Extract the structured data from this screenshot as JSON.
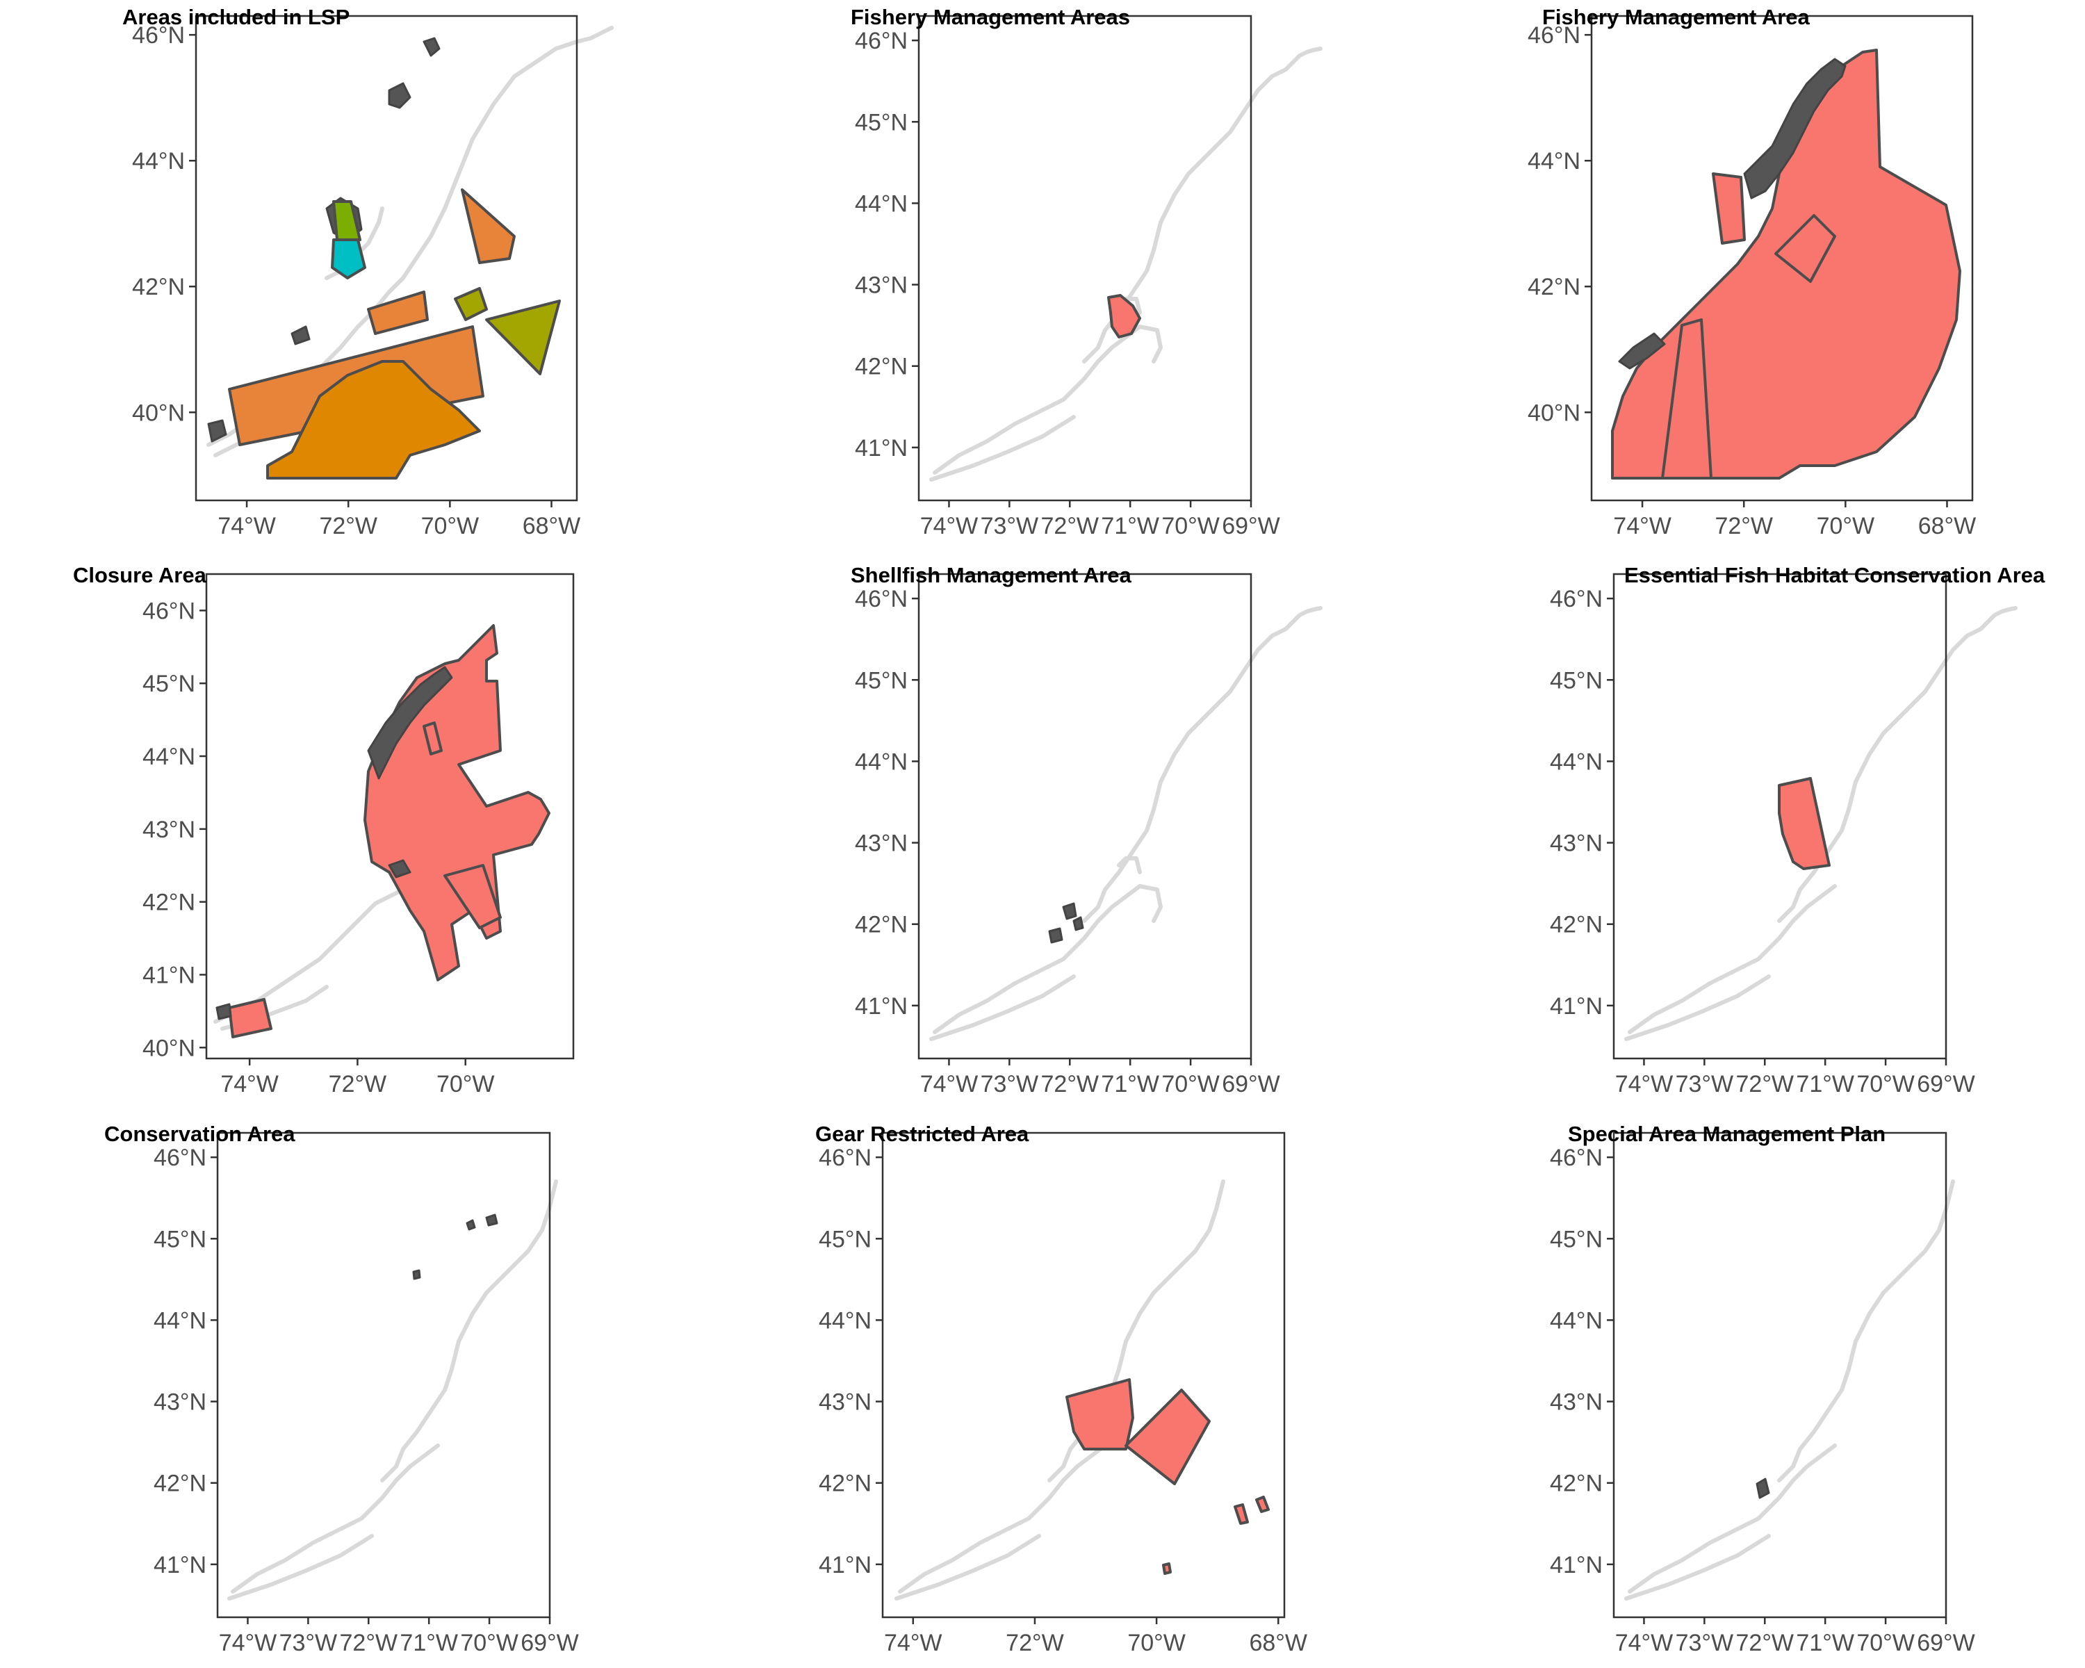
{
  "colors": {
    "coast": "#d9d9d9",
    "outline": "#4d4d4d",
    "default_fill": "#f8766d",
    "coast_dark": "#555555",
    "orange": "#e8833a",
    "dark_orange": "#e08700",
    "olive": "#a3a500",
    "green": "#7cae00",
    "cyan": "#00bfc4"
  },
  "panels": [
    {
      "title": "Areas included in LSP",
      "lon_range": [
        -75.0,
        -67.5
      ],
      "lat_range": [
        38.6,
        46.3
      ],
      "x_ticks": [
        "74°W",
        "72°W",
        "70°W",
        "68°W"
      ],
      "y_ticks": [
        "40°N",
        "42°N",
        "44°N",
        "46°N"
      ]
    },
    {
      "title": "Fishery Management Areas",
      "lon_range": [
        -74.5,
        -69.0
      ],
      "lat_range": [
        40.35,
        46.3
      ],
      "x_ticks": [
        "74°W",
        "73°W",
        "72°W",
        "71°W",
        "70°W",
        "69°W"
      ],
      "y_ticks": [
        "41°N",
        "42°N",
        "43°N",
        "44°N",
        "45°N",
        "46°N"
      ]
    },
    {
      "title": "Fishery Management Area",
      "lon_range": [
        -75.0,
        -67.5
      ],
      "lat_range": [
        38.6,
        46.3
      ],
      "x_ticks": [
        "74°W",
        "72°W",
        "70°W",
        "68°W"
      ],
      "y_ticks": [
        "40°N",
        "42°N",
        "44°N",
        "46°N"
      ]
    },
    {
      "title": "Closure Area",
      "lon_range": [
        -74.8,
        -68.0
      ],
      "lat_range": [
        39.85,
        46.5
      ],
      "x_ticks": [
        "74°W",
        "72°W",
        "70°W"
      ],
      "y_ticks": [
        "40°N",
        "41°N",
        "42°N",
        "43°N",
        "44°N",
        "45°N",
        "46°N"
      ]
    },
    {
      "title": "Shellfish Management Area",
      "lon_range": [
        -74.5,
        -69.0
      ],
      "lat_range": [
        40.35,
        46.3
      ],
      "x_ticks": [
        "74°W",
        "73°W",
        "72°W",
        "71°W",
        "70°W",
        "69°W"
      ],
      "y_ticks": [
        "41°N",
        "42°N",
        "43°N",
        "44°N",
        "45°N",
        "46°N"
      ]
    },
    {
      "title": "Essential Fish Habitat Conservation Area",
      "lon_range": [
        -74.5,
        -69.0
      ],
      "lat_range": [
        40.35,
        46.3
      ],
      "x_ticks": [
        "74°W",
        "73°W",
        "72°W",
        "71°W",
        "70°W",
        "69°W"
      ],
      "y_ticks": [
        "41°N",
        "42°N",
        "43°N",
        "44°N",
        "45°N",
        "46°N"
      ]
    },
    {
      "title": "Conservation Area",
      "lon_range": [
        -74.5,
        -69.0
      ],
      "lat_range": [
        40.35,
        46.3
      ],
      "x_ticks": [
        "74°W",
        "73°W",
        "72°W",
        "71°W",
        "70°W",
        "69°W"
      ],
      "y_ticks": [
        "41°N",
        "42°N",
        "43°N",
        "44°N",
        "45°N",
        "46°N"
      ]
    },
    {
      "title": "Gear Restricted Area",
      "lon_range": [
        -74.5,
        -67.9
      ],
      "lat_range": [
        40.35,
        46.3
      ],
      "x_ticks": [
        "74°W",
        "72°W",
        "70°W",
        "68°W"
      ],
      "y_ticks": [
        "41°N",
        "42°N",
        "43°N",
        "44°N",
        "45°N",
        "46°N"
      ]
    },
    {
      "title": "Special Area Management Plan",
      "lon_range": [
        -74.5,
        -69.0
      ],
      "lat_range": [
        40.35,
        46.3
      ],
      "x_ticks": [
        "74°W",
        "73°W",
        "72°W",
        "71°W",
        "70°W",
        "69°W"
      ],
      "y_ticks": [
        "41°N",
        "42°N",
        "43°N",
        "44°N",
        "45°N",
        "46°N"
      ]
    }
  ]
}
